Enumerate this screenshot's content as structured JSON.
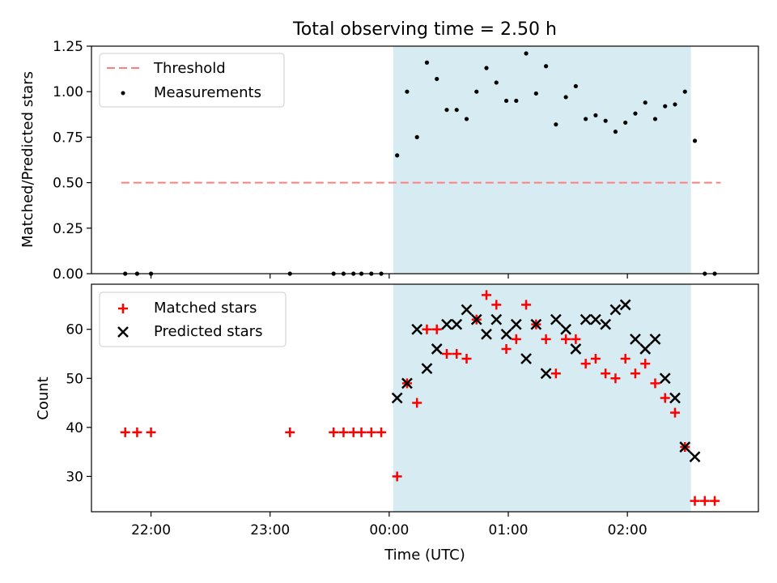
{
  "title": "Total observing time = 2.50 h",
  "colors": {
    "threshold": "#ff7f7f",
    "shade": "#add8e6",
    "matched": "#ff0000",
    "predicted": "#000000",
    "measurement": "#000000"
  },
  "chart_data": [
    {
      "type": "scatter",
      "ylabel": "Matched/Predicted stars",
      "ylim": [
        0,
        1.25
      ],
      "yticks": [
        0,
        0.25,
        0.5,
        0.75,
        1.0,
        1.25
      ],
      "ytick_labels": [
        "0.00",
        "0.25",
        "0.50",
        "0.75",
        "1.00",
        "1.25"
      ],
      "legend": {
        "position": "top-left",
        "entries": [
          "Threshold",
          "Measurements"
        ]
      },
      "observing_window": [
        "00:02",
        "02:32"
      ],
      "threshold": {
        "name": "Threshold",
        "y": 0.5,
        "x_range": [
          "21:45",
          "02:47"
        ]
      },
      "series": [
        {
          "name": "Measurements",
          "points": [
            [
              "21:47",
              0
            ],
            [
              "21:53",
              0
            ],
            [
              "22:00",
              0
            ],
            [
              "23:10",
              0
            ],
            [
              "23:32",
              0
            ],
            [
              "23:37",
              0
            ],
            [
              "23:42",
              0
            ],
            [
              "23:46",
              0
            ],
            [
              "23:51",
              0
            ],
            [
              "23:56",
              0
            ],
            [
              "00:04",
              0.65
            ],
            [
              "00:09",
              1.0
            ],
            [
              "00:14",
              0.75
            ],
            [
              "00:19",
              1.16
            ],
            [
              "00:24",
              1.07
            ],
            [
              "00:29",
              0.9
            ],
            [
              "00:34",
              0.9
            ],
            [
              "00:39",
              0.85
            ],
            [
              "00:44",
              1.0
            ],
            [
              "00:49",
              1.13
            ],
            [
              "00:54",
              1.05
            ],
            [
              "00:59",
              0.95
            ],
            [
              "01:04",
              0.95
            ],
            [
              "01:09",
              1.21
            ],
            [
              "01:14",
              0.99
            ],
            [
              "01:19",
              1.14
            ],
            [
              "01:24",
              0.82
            ],
            [
              "01:29",
              0.97
            ],
            [
              "01:34",
              1.03
            ],
            [
              "01:39",
              0.85
            ],
            [
              "01:44",
              0.87
            ],
            [
              "01:49",
              0.84
            ],
            [
              "01:54",
              0.78
            ],
            [
              "01:59",
              0.83
            ],
            [
              "02:04",
              0.88
            ],
            [
              "02:09",
              0.94
            ],
            [
              "02:14",
              0.85
            ],
            [
              "02:19",
              0.92
            ],
            [
              "02:24",
              0.93
            ],
            [
              "02:29",
              1.0
            ],
            [
              "02:34",
              0.73
            ],
            [
              "02:39",
              0
            ],
            [
              "02:44",
              0
            ]
          ]
        }
      ]
    },
    {
      "type": "scatter",
      "xlabel": "Time (UTC)",
      "ylabel": "Count",
      "ylim": [
        22.8,
        69.2
      ],
      "yticks": [
        30,
        40,
        50,
        60
      ],
      "ytick_labels": [
        "30",
        "40",
        "50",
        "60"
      ],
      "xticks": [
        "22:00",
        "23:00",
        "00:00",
        "01:00",
        "02:00"
      ],
      "xtick_labels": [
        "22:00",
        "23:00",
        "00:00",
        "01:00",
        "02:00"
      ],
      "legend": {
        "position": "top-left",
        "entries": [
          "Matched stars",
          "Predicted stars"
        ]
      },
      "observing_window": [
        "00:02",
        "02:32"
      ],
      "series": [
        {
          "name": "Matched stars",
          "marker": "+",
          "points": [
            [
              "21:47",
              39
            ],
            [
              "21:53",
              39
            ],
            [
              "22:00",
              39
            ],
            [
              "23:10",
              39
            ],
            [
              "23:32",
              39
            ],
            [
              "23:37",
              39
            ],
            [
              "23:42",
              39
            ],
            [
              "23:46",
              39
            ],
            [
              "23:51",
              39
            ],
            [
              "23:56",
              39
            ],
            [
              "00:04",
              30
            ],
            [
              "00:09",
              49
            ],
            [
              "00:14",
              45
            ],
            [
              "00:19",
              60
            ],
            [
              "00:24",
              60
            ],
            [
              "00:29",
              55
            ],
            [
              "00:34",
              55
            ],
            [
              "00:39",
              54
            ],
            [
              "00:44",
              62
            ],
            [
              "00:49",
              67
            ],
            [
              "00:54",
              65
            ],
            [
              "00:59",
              56
            ],
            [
              "01:04",
              58
            ],
            [
              "01:09",
              65
            ],
            [
              "01:14",
              61
            ],
            [
              "01:19",
              58
            ],
            [
              "01:24",
              51
            ],
            [
              "01:29",
              58
            ],
            [
              "01:34",
              58
            ],
            [
              "01:39",
              53
            ],
            [
              "01:44",
              54
            ],
            [
              "01:49",
              51
            ],
            [
              "01:54",
              50
            ],
            [
              "01:59",
              54
            ],
            [
              "02:04",
              51
            ],
            [
              "02:09",
              53
            ],
            [
              "02:14",
              49
            ],
            [
              "02:19",
              46
            ],
            [
              "02:24",
              43
            ],
            [
              "02:29",
              36
            ],
            [
              "02:34",
              25
            ],
            [
              "02:39",
              25
            ],
            [
              "02:44",
              25
            ]
          ]
        },
        {
          "name": "Predicted stars",
          "marker": "x",
          "points": [
            [
              "00:04",
              46
            ],
            [
              "00:09",
              49
            ],
            [
              "00:14",
              60
            ],
            [
              "00:19",
              52
            ],
            [
              "00:24",
              56
            ],
            [
              "00:29",
              61
            ],
            [
              "00:34",
              61
            ],
            [
              "00:39",
              64
            ],
            [
              "00:44",
              62
            ],
            [
              "00:49",
              59
            ],
            [
              "00:54",
              62
            ],
            [
              "00:59",
              59
            ],
            [
              "01:04",
              61
            ],
            [
              "01:09",
              54
            ],
            [
              "01:14",
              61
            ],
            [
              "01:19",
              51
            ],
            [
              "01:24",
              62
            ],
            [
              "01:29",
              60
            ],
            [
              "01:34",
              56
            ],
            [
              "01:39",
              62
            ],
            [
              "01:44",
              62
            ],
            [
              "01:49",
              61
            ],
            [
              "01:54",
              64
            ],
            [
              "01:59",
              65
            ],
            [
              "02:04",
              58
            ],
            [
              "02:09",
              56
            ],
            [
              "02:14",
              58
            ],
            [
              "02:19",
              50
            ],
            [
              "02:24",
              46
            ],
            [
              "02:29",
              36
            ],
            [
              "02:34",
              34
            ]
          ]
        }
      ]
    }
  ]
}
